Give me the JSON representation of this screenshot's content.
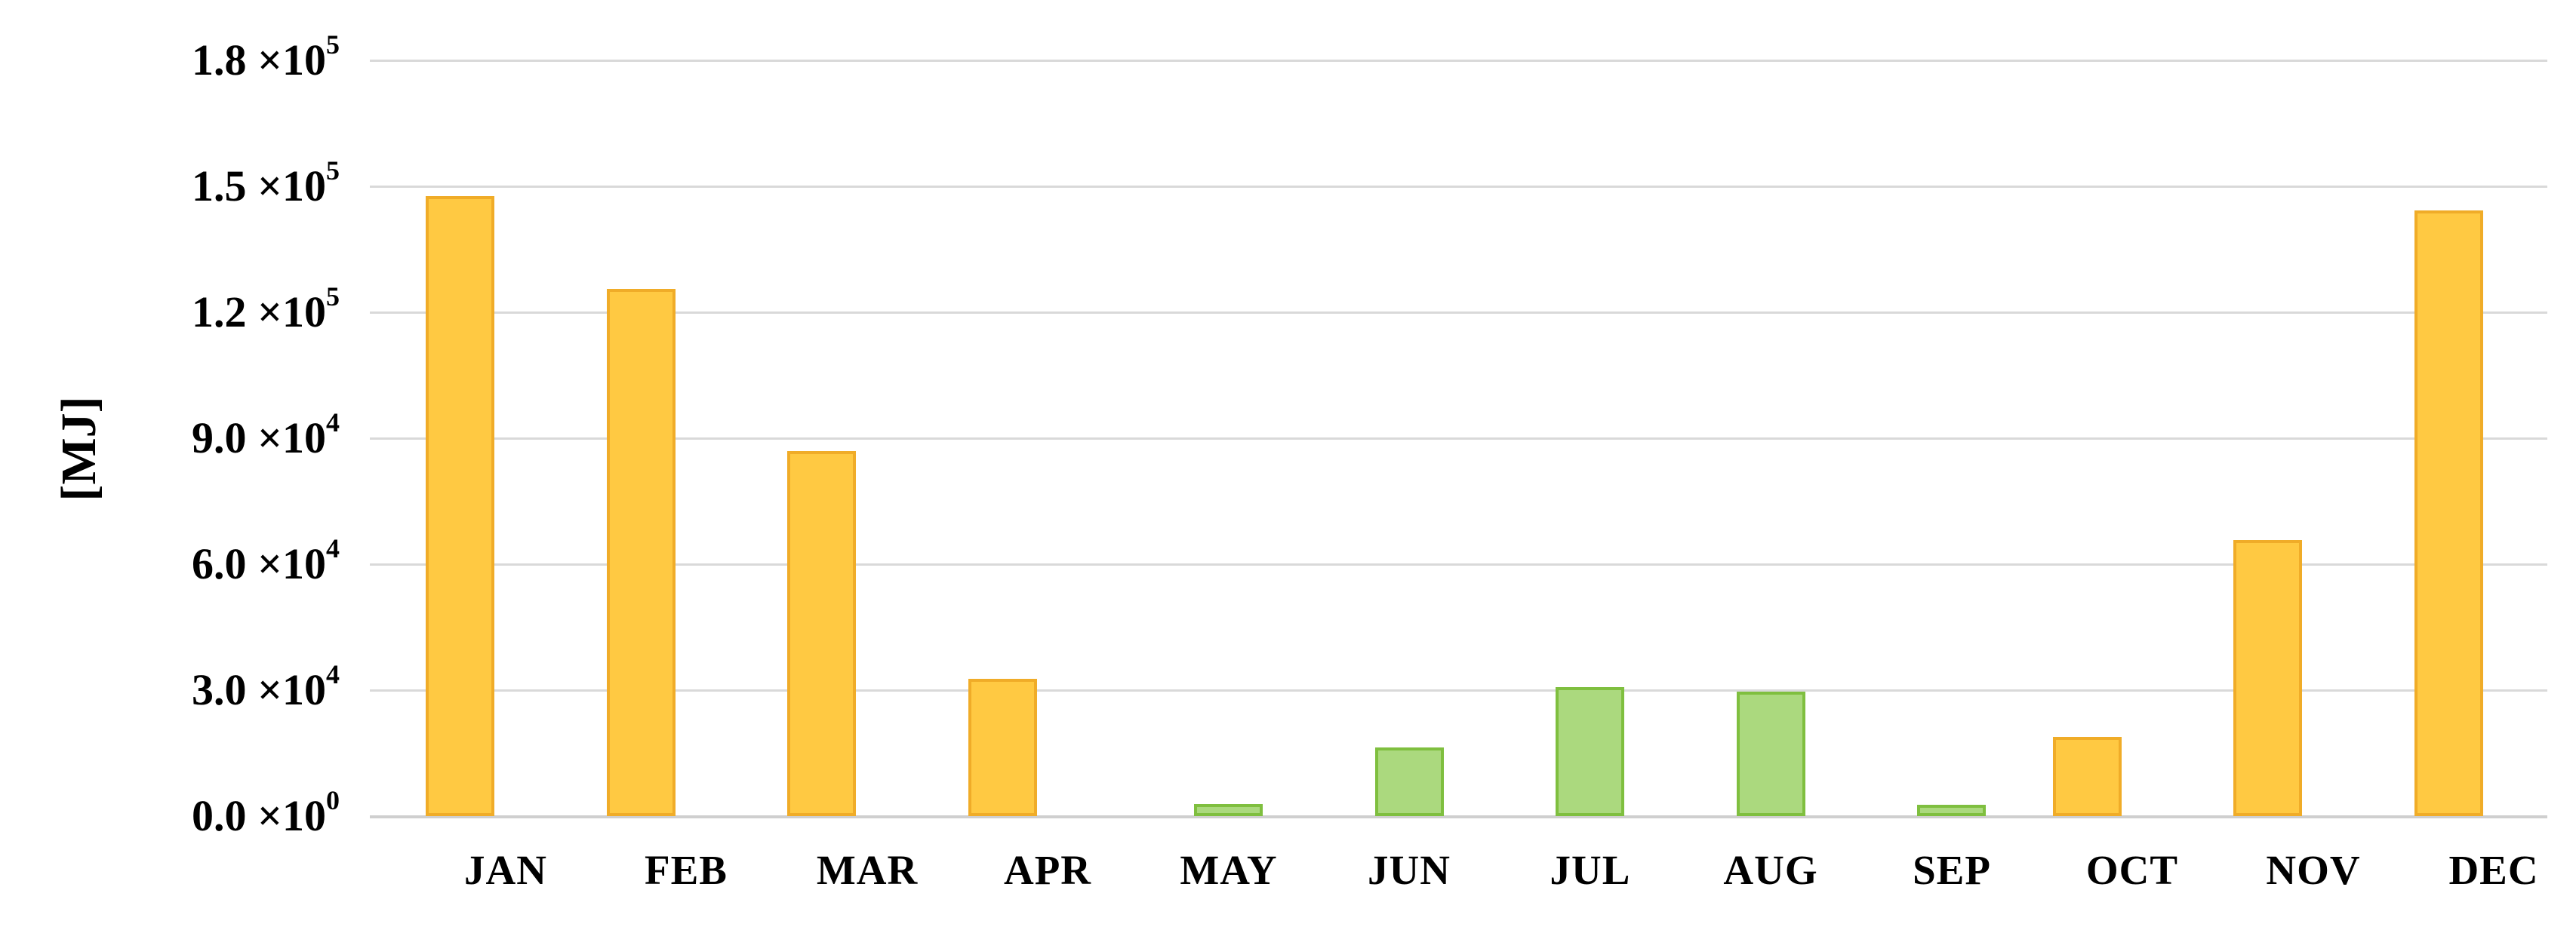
{
  "chart_data": {
    "type": "bar",
    "title": "",
    "ylabel": "[MJ]",
    "xlabel": "",
    "categories": [
      "JAN",
      "FEB",
      "MAR",
      "APR",
      "MAY",
      "JUN",
      "JUL",
      "AUG",
      "SEP",
      "OCT",
      "NOV",
      "DEC"
    ],
    "values": [
      147600,
      125500,
      86900,
      32700,
      2900,
      16300,
      30700,
      29600,
      2700,
      18900,
      65800,
      144200
    ],
    "bar_colors": [
      "yellow",
      "yellow",
      "yellow",
      "yellow",
      "green",
      "green",
      "green",
      "green",
      "green",
      "yellow",
      "yellow",
      "yellow"
    ],
    "ylim": [
      0,
      180000
    ],
    "ytick_labels": [
      "0.0 ×10^0",
      "3.0 ×10^4",
      "6.0 ×10^4",
      "9.0 ×10^4",
      "1.2 ×10^5",
      "1.5 ×10^5",
      "1.8 ×10^5"
    ],
    "grid": true,
    "legend_position": "none"
  },
  "colors": {
    "yellow_fill": "#FFC942",
    "yellow_border": "#F0AC28",
    "green_fill": "#ABD97E",
    "green_border": "#7FBF3F",
    "gridline": "#D9D9D9",
    "axis_line": "#CFCFCF",
    "text": "#000000",
    "background": "#FFFFFF"
  }
}
